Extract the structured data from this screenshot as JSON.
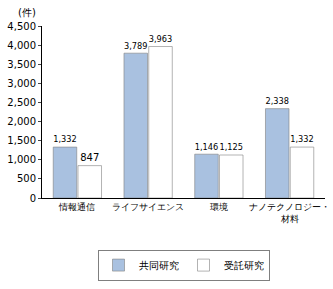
{
  "chart_data": {
    "type": "bar",
    "y_label": "(件)",
    "categories": [
      "情報通信",
      "ライフサイエンス",
      "環境",
      "ナノテクノロジー・材料"
    ],
    "series": [
      {
        "name": "共同研究",
        "color": "#a9c1e0",
        "values": [
          1332,
          3789,
          1146,
          2338
        ],
        "value_labels": [
          "1,332",
          "3,789",
          "1,146",
          "2,338"
        ]
      },
      {
        "name": "受託研究",
        "color": "#f4a3b6",
        "values": [
          847,
          3963,
          1125,
          1332
        ],
        "value_labels": [
          "847",
          "3,963",
          "1,125",
          "1,332"
        ]
      }
    ],
    "ylim": [
      0,
      4500
    ],
    "yticks": [
      0,
      500,
      {
        "value": 1000,
        "label": "1,000"
      },
      {
        "value": 1500,
        "label": "1,500"
      },
      {
        "value": 2000,
        "label": "2,000"
      },
      {
        "value": 2500,
        "label": "2,500"
      },
      {
        "value": 3000,
        "label": "3,000"
      },
      {
        "value": 3500,
        "label": "3,500"
      },
      {
        "value": 4000,
        "label": "4,000"
      },
      {
        "value": 4500,
        "label": "4,500"
      }
    ],
    "grid": false,
    "legend": "bottom",
    "data_labels": true
  }
}
